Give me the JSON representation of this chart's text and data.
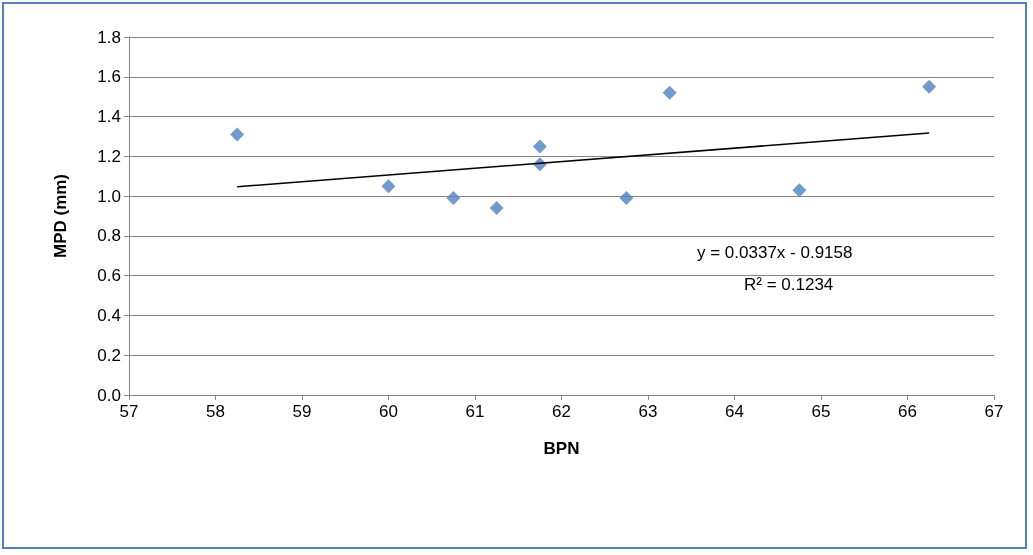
{
  "chart_data": {
    "type": "scatter",
    "xlabel": "BPN",
    "ylabel": "MPD (mm)",
    "xlim": [
      57,
      67
    ],
    "xticks": [
      57,
      58,
      59,
      60,
      61,
      62,
      63,
      64,
      65,
      66,
      67
    ],
    "ylim": [
      0,
      1.8
    ],
    "yticks": [
      {
        "value": 0,
        "label": "0.0"
      },
      {
        "value": 0.2,
        "label": "0.2"
      },
      {
        "value": 0.4,
        "label": "0.4"
      },
      {
        "value": 0.6,
        "label": "0.6"
      },
      {
        "value": 0.8,
        "label": "0.8"
      },
      {
        "value": 1.0,
        "label": "1.0"
      },
      {
        "value": 1.2,
        "label": "1.2"
      },
      {
        "value": 1.4,
        "label": "1.4"
      },
      {
        "value": 1.6,
        "label": "1.6"
      },
      {
        "value": 1.8,
        "label": "1.8"
      }
    ],
    "grid": "y",
    "marker": "diamond",
    "series": [
      {
        "x": [
          58.25,
          60,
          60.75,
          61.25,
          61.75,
          61.75,
          62.75,
          63.25,
          64.75,
          66.25
        ],
        "values": [
          1.31,
          1.05,
          0.99,
          0.94,
          1.25,
          1.16,
          0.99,
          1.52,
          1.03,
          1.55
        ],
        "color": "#4f81bd"
      },
      {
        "type": "line",
        "marker": "none",
        "x": [
          58.25,
          66.25
        ],
        "values": [
          1.047,
          1.317
        ],
        "color": "#000000"
      }
    ],
    "annotations": [
      "y = 0.0337x - 0.9158",
      "R² = 0.1234"
    ]
  }
}
